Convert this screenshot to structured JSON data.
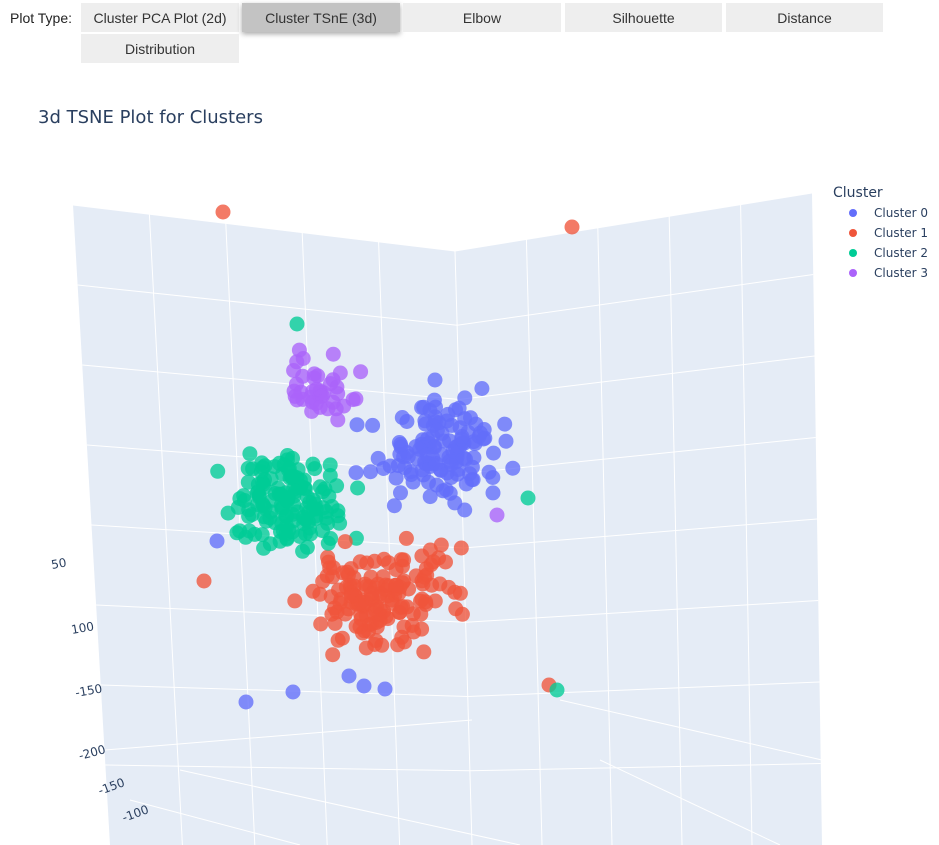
{
  "toolbar": {
    "label": "Plot Type:",
    "tabs": [
      {
        "label": "Cluster PCA Plot (2d)",
        "active": false
      },
      {
        "label": "Cluster TSnE (3d)",
        "active": true
      },
      {
        "label": "Elbow",
        "active": false
      },
      {
        "label": "Silhouette",
        "active": false
      },
      {
        "label": "Distance",
        "active": false
      },
      {
        "label": "Distribution",
        "active": false
      }
    ]
  },
  "chart_data": {
    "type": "scatter3d",
    "title": "3d TSNE Plot for Clusters",
    "legend": {
      "title": "Cluster",
      "placement": "top-right"
    },
    "visible_tick_labels": [
      "50",
      "100",
      "-150",
      "-200",
      "-150",
      "-100"
    ],
    "grid": true,
    "series": [
      {
        "name": "Cluster 0",
        "color": "#636efa"
      },
      {
        "name": "Cluster 1",
        "color": "#ef553b"
      },
      {
        "name": "Cluster 2",
        "color": "#00cc96"
      },
      {
        "name": "Cluster 3",
        "color": "#ab63fa"
      }
    ]
  },
  "colors": {
    "scene_bg": "#e5ecf6",
    "grid": "#ffffff",
    "text": "#2a3f5f"
  }
}
